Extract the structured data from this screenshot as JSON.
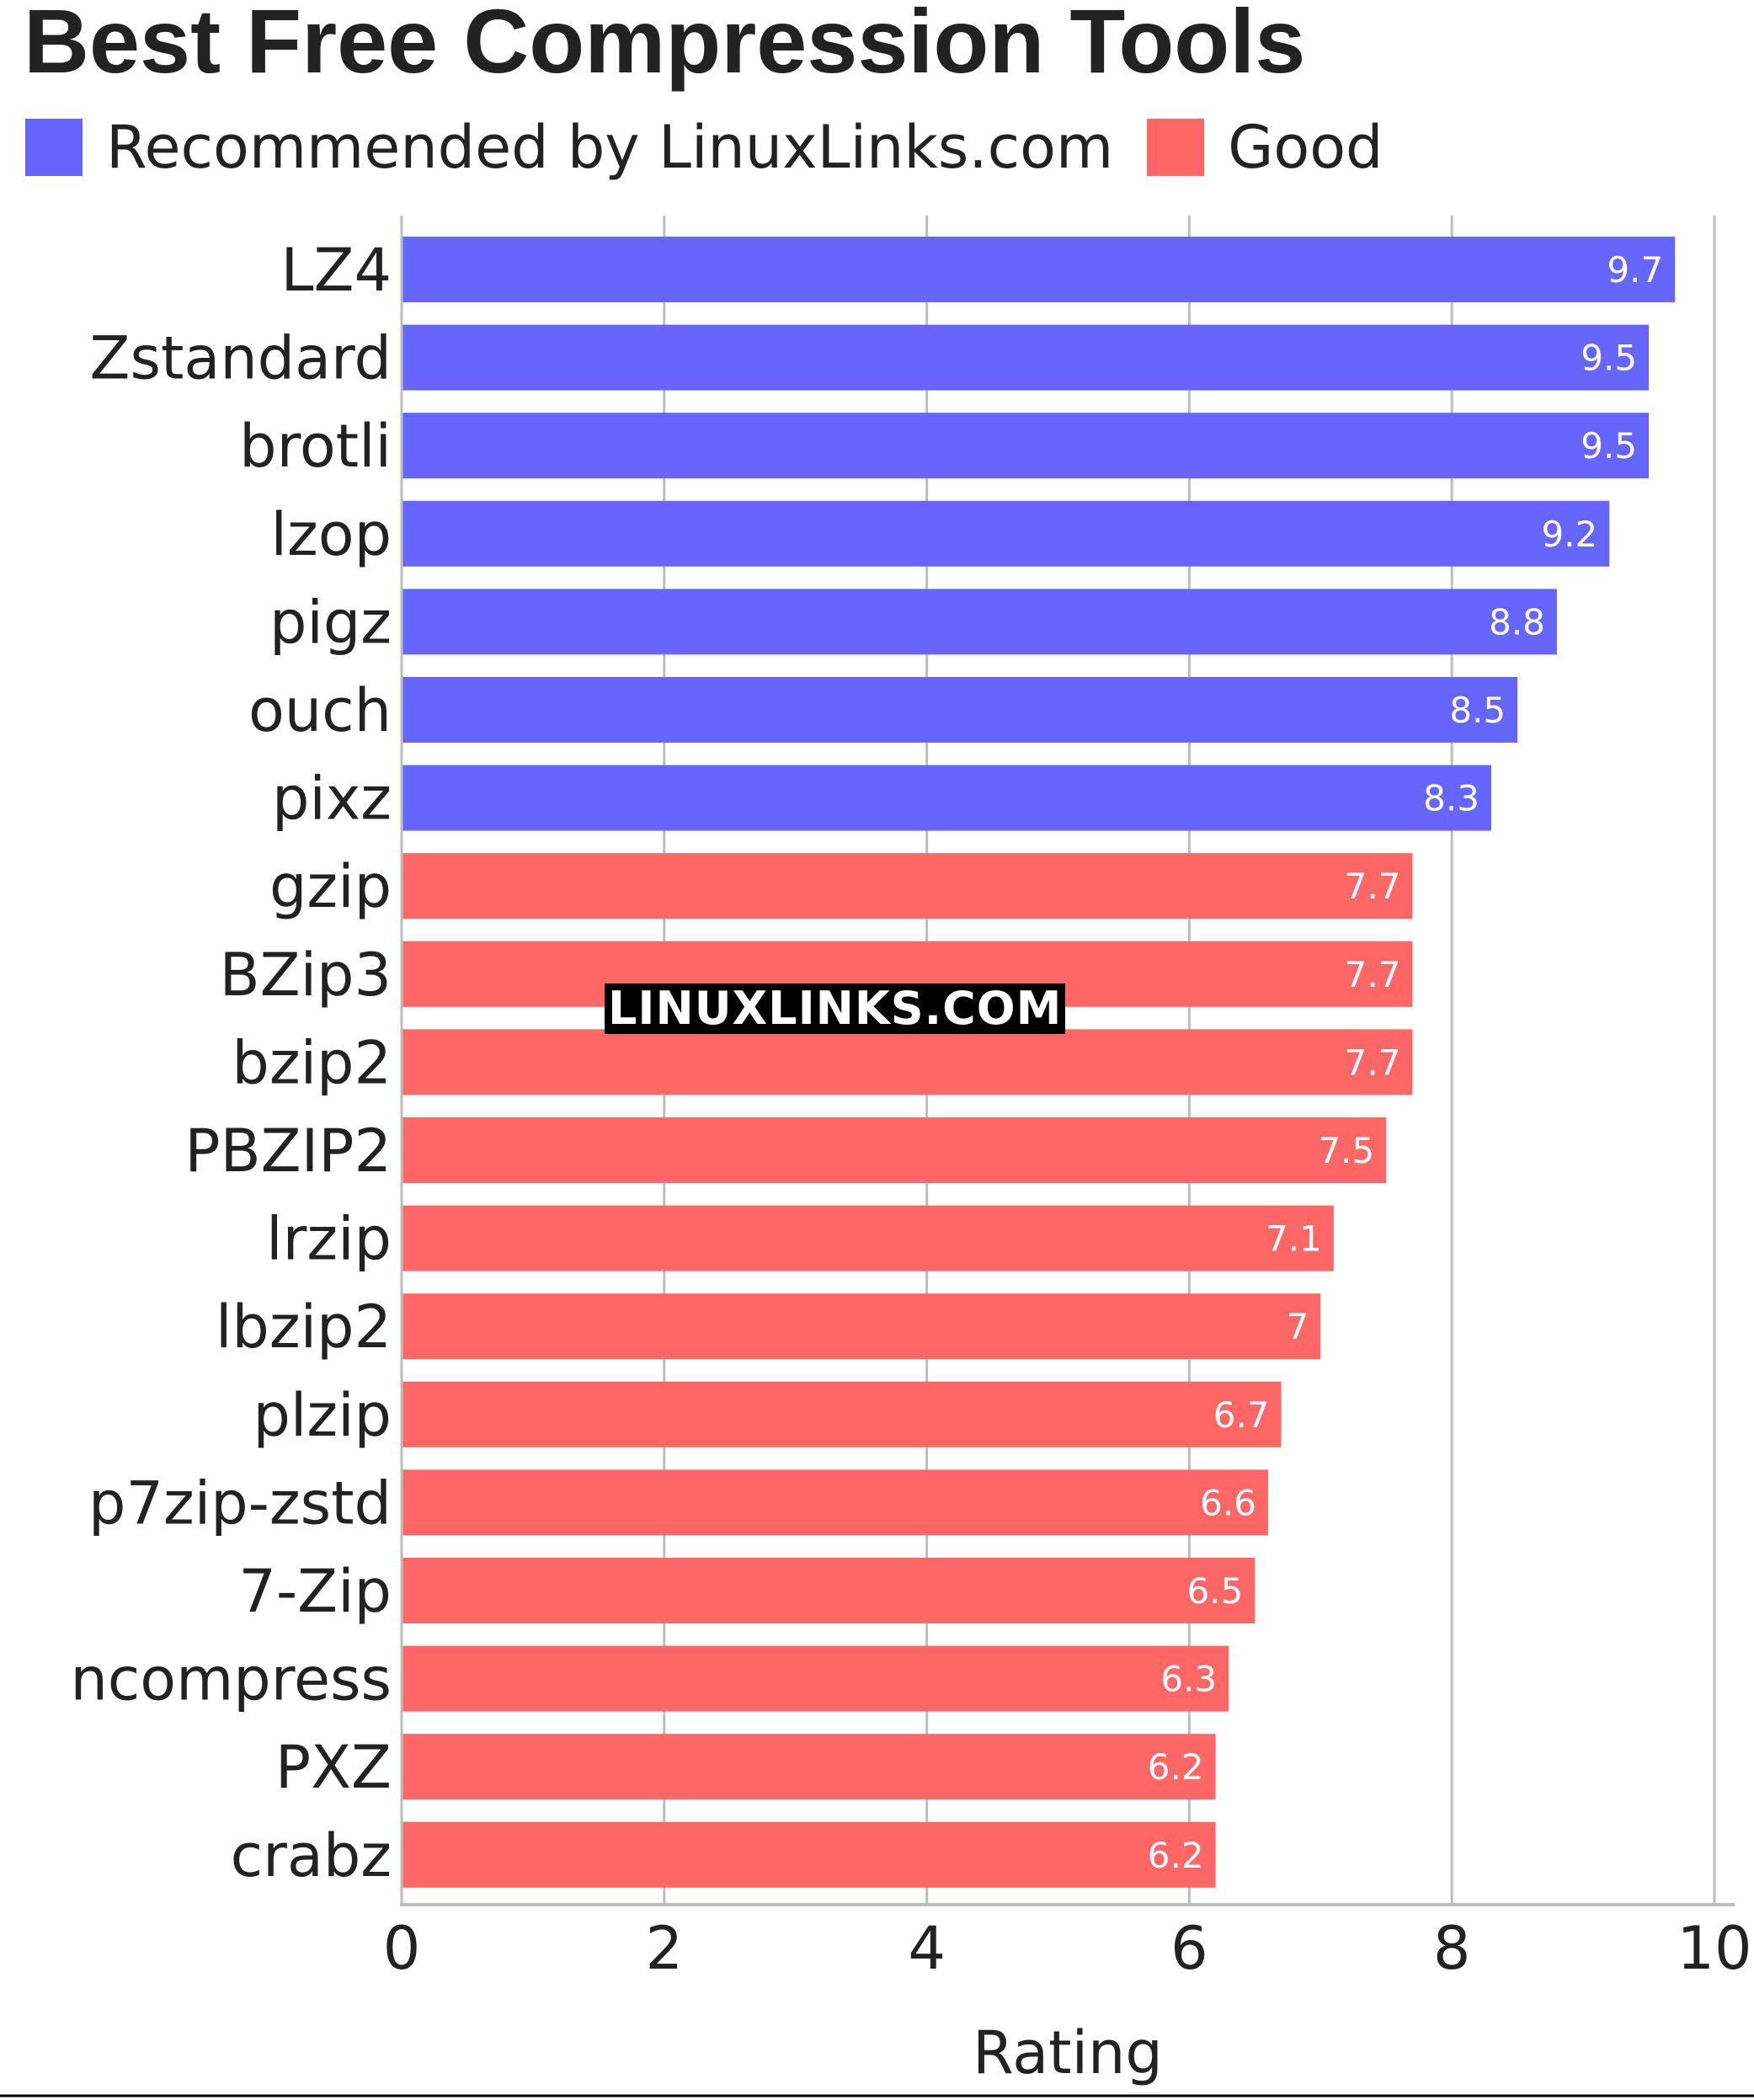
{
  "chart_data": {
    "type": "bar",
    "orientation": "horizontal",
    "title": "Best Free Compression Tools",
    "xlabel": "Rating",
    "xlim": [
      0,
      10
    ],
    "xticks": [
      "0",
      "2",
      "4",
      "6",
      "8",
      "10"
    ],
    "grid": true,
    "legend_position": "top-left",
    "legend": [
      {
        "label": "Recommended by LinuxLinks.com",
        "color": "#6666ff"
      },
      {
        "label": "Good",
        "color": "#ff6666"
      }
    ],
    "categories": [
      "LZ4",
      "Zstandard",
      "brotli",
      "lzop",
      "pigz",
      "ouch",
      "pixz",
      "gzip",
      "BZip3",
      "bzip2",
      "PBZIP2",
      "lrzip",
      "lbzip2",
      "plzip",
      "p7zip-zstd",
      "7-Zip",
      "ncompress",
      "PXZ",
      "crabz"
    ],
    "values": [
      9.7,
      9.5,
      9.5,
      9.2,
      8.8,
      8.5,
      8.3,
      7.7,
      7.7,
      7.7,
      7.5,
      7.1,
      7,
      6.7,
      6.6,
      6.5,
      6.3,
      6.2,
      6.2
    ],
    "value_labels": [
      "9.7",
      "9.5",
      "9.5",
      "9.2",
      "8.8",
      "8.5",
      "8.3",
      "7.7",
      "7.7",
      "7.7",
      "7.5",
      "7.1",
      "7",
      "6.7",
      "6.6",
      "6.5",
      "6.3",
      "6.2",
      "6.2"
    ],
    "groups": [
      0,
      0,
      0,
      0,
      0,
      0,
      0,
      1,
      1,
      1,
      1,
      1,
      1,
      1,
      1,
      1,
      1,
      1,
      1
    ]
  },
  "watermark": "LINUXLINKS.COM"
}
